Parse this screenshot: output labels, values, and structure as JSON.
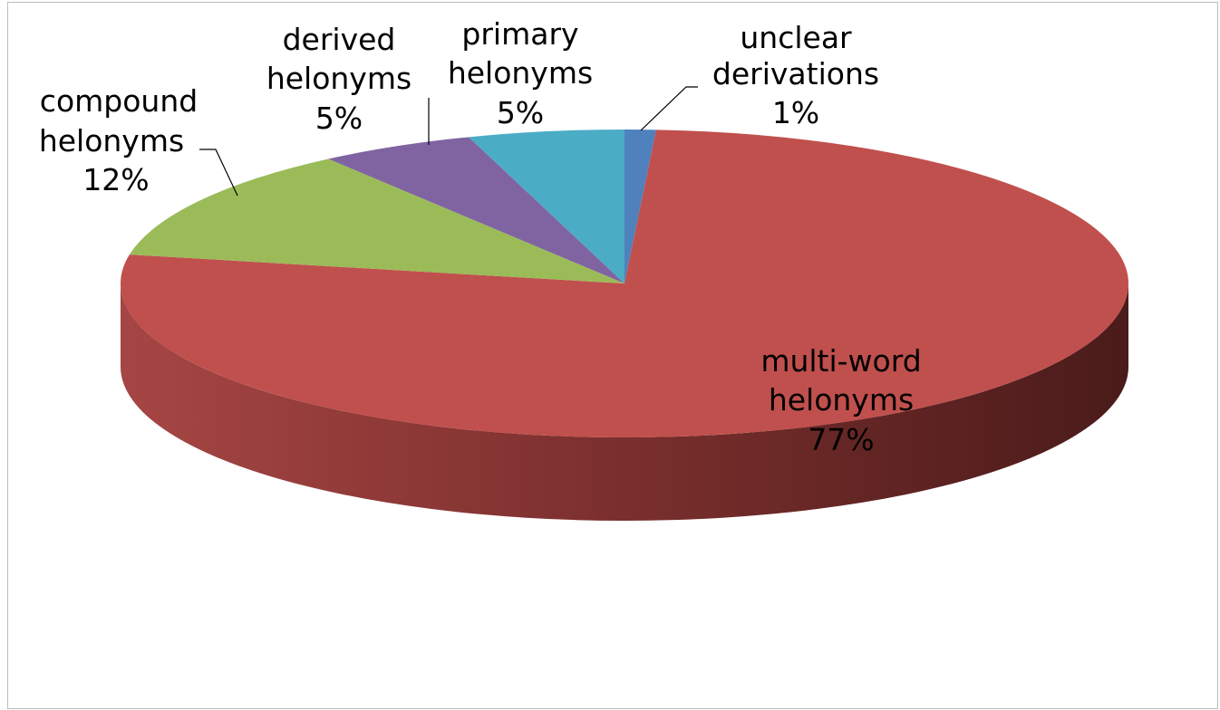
{
  "chart_data": {
    "type": "pie",
    "style": "3d",
    "title": "",
    "categories": [
      "unclear derivations",
      "multi-word helonyms",
      "compound helonyms",
      "derived helonyms",
      "primary helonyms"
    ],
    "values": [
      1,
      77,
      12,
      5,
      5
    ],
    "value_suffix": "%",
    "colors": [
      "#4f81bd",
      "#c0504d",
      "#9bbb59",
      "#8064a2",
      "#4bacc6"
    ],
    "legend": "none",
    "labels": [
      {
        "line1": "unclear",
        "line2": "derivations",
        "pct": "1%"
      },
      {
        "line1": "multi-word",
        "line2": "helonyms",
        "pct": "77%"
      },
      {
        "line1": "compound",
        "line2": "helonyms",
        "pct": "12%"
      },
      {
        "line1": "derived",
        "line2": "helonyms",
        "pct": "5%"
      },
      {
        "line1": "primary",
        "line2": "helonyms",
        "pct": "5%"
      }
    ]
  }
}
